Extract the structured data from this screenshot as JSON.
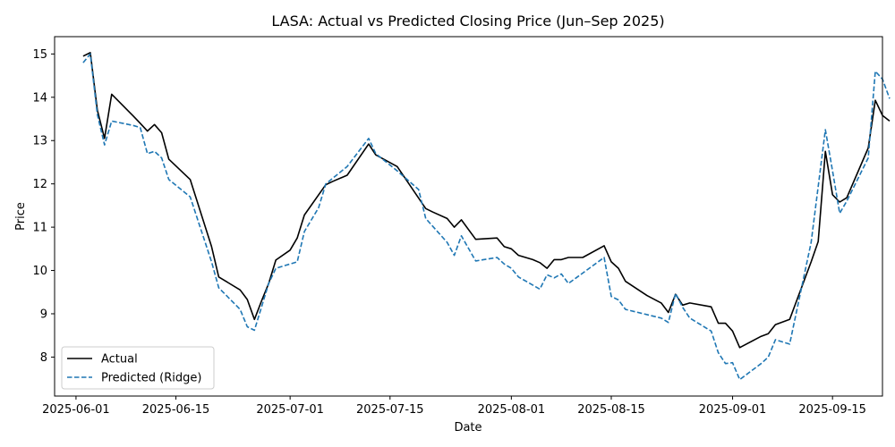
{
  "chart_data": {
    "type": "line",
    "title": "LASA: Actual vs Predicted Closing Price (Jun–Sep 2025)",
    "xlabel": "Date",
    "ylabel": "Price",
    "xlim": [
      "2025-05-29",
      "2025-09-22"
    ],
    "ylim": [
      7.1,
      15.4
    ],
    "x_ticks": [
      "2025-06-01",
      "2025-06-15",
      "2025-07-01",
      "2025-07-15",
      "2025-08-01",
      "2025-08-15",
      "2025-09-01",
      "2025-09-15"
    ],
    "y_ticks": [
      8,
      9,
      10,
      11,
      12,
      13,
      14,
      15
    ],
    "grid": false,
    "legend_position": "lower-left",
    "series": [
      {
        "name": "Actual",
        "color": "#000000",
        "style": "solid",
        "points": [
          [
            "2025-06-02",
            14.95
          ],
          [
            "2025-06-03",
            15.03
          ],
          [
            "2025-06-04",
            13.7
          ],
          [
            "2025-06-05",
            13.05
          ],
          [
            "2025-06-06",
            14.07
          ],
          [
            "2025-06-09",
            13.57
          ],
          [
            "2025-06-10",
            13.4
          ],
          [
            "2025-06-11",
            13.22
          ],
          [
            "2025-06-12",
            13.37
          ],
          [
            "2025-06-13",
            13.18
          ],
          [
            "2025-06-14",
            12.57
          ],
          [
            "2025-06-17",
            12.1
          ],
          [
            "2025-06-20",
            10.55
          ],
          [
            "2025-06-21",
            9.85
          ],
          [
            "2025-06-24",
            9.55
          ],
          [
            "2025-06-25",
            9.33
          ],
          [
            "2025-06-26",
            8.87
          ],
          [
            "2025-06-27",
            9.3
          ],
          [
            "2025-06-28",
            9.7
          ],
          [
            "2025-06-29",
            10.24
          ],
          [
            "2025-07-01",
            10.47
          ],
          [
            "2025-07-02",
            10.75
          ],
          [
            "2025-07-03",
            11.28
          ],
          [
            "2025-07-06",
            11.98
          ],
          [
            "2025-07-07",
            12.06
          ],
          [
            "2025-07-09",
            12.2
          ],
          [
            "2025-07-12",
            12.92
          ],
          [
            "2025-07-13",
            12.67
          ],
          [
            "2025-07-16",
            12.4
          ],
          [
            "2025-07-20",
            11.43
          ],
          [
            "2025-07-21",
            11.35
          ],
          [
            "2025-07-23",
            11.2
          ],
          [
            "2025-07-24",
            11.0
          ],
          [
            "2025-07-25",
            11.17
          ],
          [
            "2025-07-27",
            10.72
          ],
          [
            "2025-07-30",
            10.75
          ],
          [
            "2025-07-31",
            10.55
          ],
          [
            "2025-08-01",
            10.5
          ],
          [
            "2025-08-02",
            10.35
          ],
          [
            "2025-08-04",
            10.25
          ],
          [
            "2025-08-05",
            10.18
          ],
          [
            "2025-08-06",
            10.05
          ],
          [
            "2025-08-07",
            10.25
          ],
          [
            "2025-08-08",
            10.25
          ],
          [
            "2025-08-09",
            10.3
          ],
          [
            "2025-08-10",
            10.3
          ],
          [
            "2025-08-11",
            10.3
          ],
          [
            "2025-08-14",
            10.57
          ],
          [
            "2025-08-15",
            10.2
          ],
          [
            "2025-08-16",
            10.05
          ],
          [
            "2025-08-17",
            9.75
          ],
          [
            "2025-08-20",
            9.42
          ],
          [
            "2025-08-22",
            9.25
          ],
          [
            "2025-08-23",
            9.03
          ],
          [
            "2025-08-24",
            9.45
          ],
          [
            "2025-08-25",
            9.2
          ],
          [
            "2025-08-26",
            9.25
          ],
          [
            "2025-08-29",
            9.16
          ],
          [
            "2025-08-30",
            8.78
          ],
          [
            "2025-08-31",
            8.78
          ],
          [
            "2025-09-01",
            8.6
          ],
          [
            "2025-09-02",
            8.22
          ],
          [
            "2025-09-05",
            8.48
          ],
          [
            "2025-09-06",
            8.54
          ],
          [
            "2025-09-07",
            8.75
          ],
          [
            "2025-09-09",
            8.87
          ],
          [
            "2025-09-12",
            10.2
          ],
          [
            "2025-09-13",
            10.67
          ],
          [
            "2025-09-14",
            12.75
          ],
          [
            "2025-09-15",
            11.75
          ],
          [
            "2025-09-16",
            11.58
          ],
          [
            "2025-09-17",
            11.68
          ],
          [
            "2025-09-20",
            12.83
          ],
          [
            "2025-09-21",
            13.93
          ],
          [
            "2025-09-22",
            13.58
          ],
          [
            "2025-09-23",
            13.45
          ]
        ]
      },
      {
        "name": "Predicted (Ridge)",
        "color": "#1f77b4",
        "style": "dashed",
        "points": [
          [
            "2025-06-02",
            14.8
          ],
          [
            "2025-06-03",
            15.0
          ],
          [
            "2025-06-04",
            13.6
          ],
          [
            "2025-06-05",
            12.9
          ],
          [
            "2025-06-06",
            13.45
          ],
          [
            "2025-06-09",
            13.35
          ],
          [
            "2025-06-10",
            13.3
          ],
          [
            "2025-06-11",
            12.7
          ],
          [
            "2025-06-12",
            12.75
          ],
          [
            "2025-06-13",
            12.6
          ],
          [
            "2025-06-14",
            12.1
          ],
          [
            "2025-06-17",
            11.7
          ],
          [
            "2025-06-20",
            10.2
          ],
          [
            "2025-06-21",
            9.6
          ],
          [
            "2025-06-24",
            9.1
          ],
          [
            "2025-06-25",
            8.7
          ],
          [
            "2025-06-26",
            8.62
          ],
          [
            "2025-06-28",
            9.7
          ],
          [
            "2025-06-29",
            10.05
          ],
          [
            "2025-07-02",
            10.2
          ],
          [
            "2025-07-03",
            10.9
          ],
          [
            "2025-07-05",
            11.45
          ],
          [
            "2025-07-06",
            12.0
          ],
          [
            "2025-07-09",
            12.4
          ],
          [
            "2025-07-12",
            13.05
          ],
          [
            "2025-07-13",
            12.7
          ],
          [
            "2025-07-16",
            12.3
          ],
          [
            "2025-07-19",
            11.87
          ],
          [
            "2025-07-20",
            11.2
          ],
          [
            "2025-07-23",
            10.65
          ],
          [
            "2025-07-24",
            10.35
          ],
          [
            "2025-07-25",
            10.8
          ],
          [
            "2025-07-27",
            10.22
          ],
          [
            "2025-07-30",
            10.3
          ],
          [
            "2025-07-31",
            10.15
          ],
          [
            "2025-08-01",
            10.05
          ],
          [
            "2025-08-02",
            9.85
          ],
          [
            "2025-08-05",
            9.57
          ],
          [
            "2025-08-06",
            9.9
          ],
          [
            "2025-08-07",
            9.83
          ],
          [
            "2025-08-08",
            9.92
          ],
          [
            "2025-08-09",
            9.7
          ],
          [
            "2025-08-14",
            10.3
          ],
          [
            "2025-08-15",
            9.4
          ],
          [
            "2025-08-16",
            9.32
          ],
          [
            "2025-08-17",
            9.1
          ],
          [
            "2025-08-22",
            8.9
          ],
          [
            "2025-08-23",
            8.8
          ],
          [
            "2025-08-24",
            9.47
          ],
          [
            "2025-08-25",
            9.15
          ],
          [
            "2025-08-26",
            8.9
          ],
          [
            "2025-08-29",
            8.6
          ],
          [
            "2025-08-30",
            8.1
          ],
          [
            "2025-08-31",
            7.85
          ],
          [
            "2025-09-01",
            7.87
          ],
          [
            "2025-09-02",
            7.48
          ],
          [
            "2025-09-05",
            7.85
          ],
          [
            "2025-09-06",
            8.0
          ],
          [
            "2025-09-07",
            8.4
          ],
          [
            "2025-09-09",
            8.3
          ],
          [
            "2025-09-12",
            10.65
          ],
          [
            "2025-09-14",
            13.25
          ],
          [
            "2025-09-15",
            12.3
          ],
          [
            "2025-09-16",
            11.32
          ],
          [
            "2025-09-17",
            11.6
          ],
          [
            "2025-09-20",
            12.6
          ],
          [
            "2025-09-21",
            14.6
          ],
          [
            "2025-09-22",
            14.42
          ],
          [
            "2025-09-23",
            13.97
          ]
        ]
      }
    ]
  }
}
